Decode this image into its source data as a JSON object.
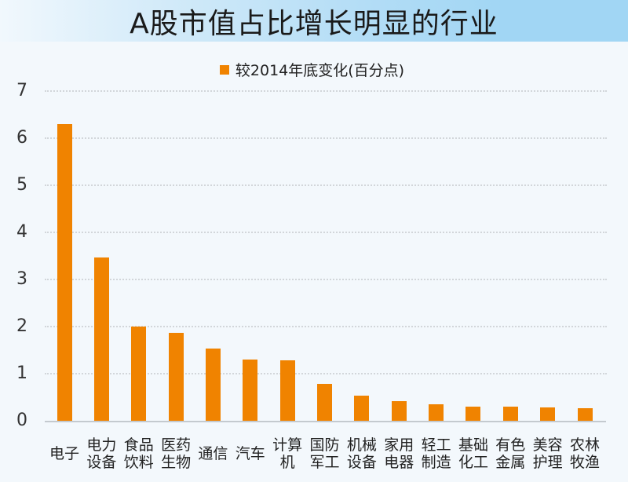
{
  "title": "A股市值占比增长明显的行业",
  "legend": {
    "label": "较2014年底变化(百分点)",
    "color": "#f08300"
  },
  "colors": {
    "bar": "#f08300",
    "background": "#f3f8fc",
    "title_band_end": "#a1d6f4",
    "gridline": "#d2d6da",
    "baseline": "#c4cacf"
  },
  "chart_data": {
    "type": "bar",
    "title": "A股市值占比增长明显的行业",
    "xlabel": "",
    "ylabel": "",
    "ylim": [
      0,
      7
    ],
    "yticks": [
      0,
      1,
      2,
      3,
      4,
      5,
      6,
      7
    ],
    "grid": true,
    "legend_position": "top-center",
    "categories": [
      "电子",
      "电力设备",
      "食品饮料",
      "医药生物",
      "通信",
      "汽车",
      "计算机",
      "国防军工",
      "机械设备",
      "家用电器",
      "轻工制造",
      "基础化工",
      "有色金属",
      "美容护理",
      "农林牧渔"
    ],
    "category_lines": [
      [
        "电子"
      ],
      [
        "电力",
        "设备"
      ],
      [
        "食品",
        "饮料"
      ],
      [
        "医药",
        "生物"
      ],
      [
        "通信"
      ],
      [
        "汽车"
      ],
      [
        "计算",
        "机"
      ],
      [
        "国防",
        "军工"
      ],
      [
        "机械",
        "设备"
      ],
      [
        "家用",
        "电器"
      ],
      [
        "轻工",
        "制造"
      ],
      [
        "基础",
        "化工"
      ],
      [
        "有色",
        "金属"
      ],
      [
        "美容",
        "护理"
      ],
      [
        "农林",
        "牧渔"
      ]
    ],
    "series": [
      {
        "name": "较2014年底变化(百分点)",
        "values": [
          6.3,
          3.47,
          2.0,
          1.87,
          1.53,
          1.3,
          1.28,
          0.78,
          0.53,
          0.41,
          0.35,
          0.3,
          0.3,
          0.28,
          0.27
        ]
      }
    ]
  }
}
